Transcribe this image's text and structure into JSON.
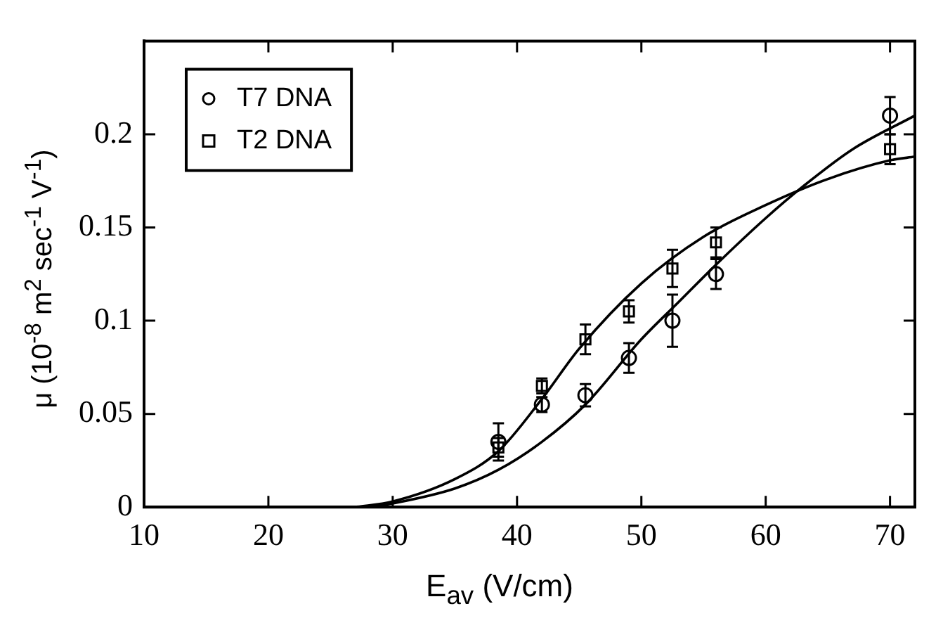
{
  "chart_data": {
    "type": "scatter",
    "xlabel": "E$_{av}$ (V/cm)",
    "ylabel": "μ  (10$^{-8}$ m$^{2}$ sec$^{-1}$ V$^{-1}$)",
    "xlim": [
      10,
      72
    ],
    "xticks": [
      10,
      20,
      30,
      40,
      50,
      60,
      70
    ],
    "ylim": [
      0,
      0.25
    ],
    "yticks": [
      0,
      0.05,
      0.1,
      0.15,
      0.2
    ],
    "grid": false,
    "legend": "top left",
    "series": [
      {
        "name": "T7 DNA",
        "type": "scatter",
        "marker": "circle",
        "color": "#000000",
        "x": [
          38.5,
          42,
          45.5,
          49,
          52.5,
          56,
          70
        ],
        "values": [
          0.035,
          0.055,
          0.06,
          0.08,
          0.1,
          0.125,
          0.21
        ],
        "errors": [
          0.01,
          0.004,
          0.006,
          0.008,
          0.014,
          0.008,
          0.01
        ]
      },
      {
        "name": "T2 DNA",
        "type": "scatter",
        "marker": "square",
        "color": "#000000",
        "x": [
          38.5,
          42,
          45.5,
          49,
          52.5,
          56,
          70
        ],
        "values": [
          0.032,
          0.065,
          0.09,
          0.105,
          0.128,
          0.142,
          0.192
        ],
        "errors": [
          0.005,
          0.004,
          0.008,
          0.006,
          0.01,
          0.008,
          0.008
        ]
      },
      {
        "type": "line",
        "marker": "none",
        "color": "#000000",
        "x": [
          27,
          30,
          35,
          38.5,
          42,
          45,
          50,
          55,
          60,
          65,
          70,
          72
        ],
        "values": [
          0,
          0.003,
          0.015,
          0.03,
          0.058,
          0.085,
          0.12,
          0.145,
          0.162,
          0.176,
          0.186,
          0.188
        ]
      },
      {
        "type": "line",
        "marker": "none",
        "color": "#000000",
        "x": [
          28,
          30,
          35,
          38.5,
          42,
          45.5,
          50,
          53,
          56,
          60,
          63,
          67,
          72
        ],
        "values": [
          0,
          0.002,
          0.01,
          0.02,
          0.035,
          0.055,
          0.09,
          0.11,
          0.13,
          0.155,
          0.172,
          0.192,
          0.21
        ]
      }
    ]
  }
}
